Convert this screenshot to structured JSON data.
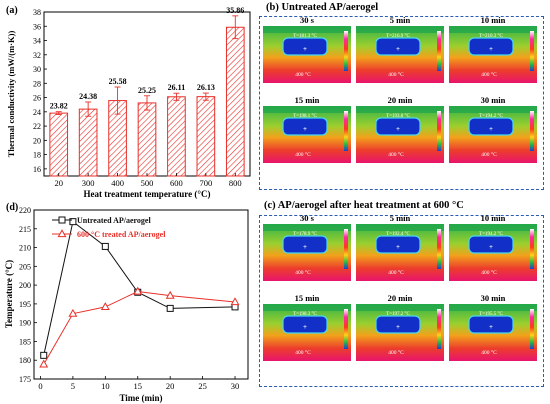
{
  "panels": {
    "a": {
      "label": "(a)",
      "chart_data": {
        "type": "bar",
        "categories": [
          "20",
          "300",
          "400",
          "500",
          "600",
          "700",
          "800"
        ],
        "values": [
          23.82,
          24.38,
          25.58,
          25.25,
          26.11,
          26.13,
          35.86
        ],
        "value_labels": [
          "23.82",
          "24.38",
          "25.58",
          "25.25",
          "26.11",
          "26.13",
          "35.86"
        ],
        "errors": [
          0.2,
          1.0,
          1.9,
          1.0,
          0.5,
          0.5,
          1.6
        ],
        "xlabel": "Heat treatment temperature (°C)",
        "ylabel": "Thermal conductivity (mW/(m·K))",
        "ylim": [
          15,
          38
        ],
        "yticks": [
          16,
          18,
          20,
          22,
          24,
          26,
          28,
          30,
          32,
          34,
          36,
          38
        ],
        "bar_color": "#e8302a"
      }
    },
    "b": {
      "label": "(b) Untreated AP/aerogel",
      "tiles": [
        {
          "time": "30 s",
          "readout": "T=181.3 °C",
          "plate": "400 °C"
        },
        {
          "time": "5 min",
          "readout": "T=216.9 °C",
          "plate": "400 °C"
        },
        {
          "time": "10 min",
          "readout": "T=210.3 °C",
          "plate": "400 °C"
        },
        {
          "time": "15 min",
          "readout": "T=198.1 °C",
          "plate": "400 °C"
        },
        {
          "time": "20 min",
          "readout": "T=193.8 °C",
          "plate": "400 °C"
        },
        {
          "time": "30 min",
          "readout": "T=194.2 °C",
          "plate": "400 °C"
        }
      ]
    },
    "c": {
      "label": "(c) AP/aerogel after heat treatment at 600 °C",
      "tiles": [
        {
          "time": "30 s",
          "readout": "T=178.9 °C",
          "plate": "400 °C"
        },
        {
          "time": "5 min",
          "readout": "T=192.4 °C",
          "plate": "400 °C"
        },
        {
          "time": "10 min",
          "readout": "T=194.2 °C",
          "plate": "400 °C"
        },
        {
          "time": "15 min",
          "readout": "T=198.3 °C",
          "plate": "400 °C"
        },
        {
          "time": "20 min",
          "readout": "T=197.2 °C",
          "plate": "400 °C"
        },
        {
          "time": "30 min",
          "readout": "T=195.5 °C",
          "plate": "400 °C"
        }
      ]
    },
    "d": {
      "label": "(d)",
      "chart_data": {
        "type": "line",
        "x": [
          0.5,
          5,
          10,
          15,
          20,
          30
        ],
        "series": [
          {
            "name": "Untreated AP/aerogel",
            "values": [
              181.3,
              216.9,
              210.3,
              198.1,
              193.8,
              194.2
            ],
            "color": "#111111",
            "marker": "square"
          },
          {
            "name": "600 °C treated AP/aerogel",
            "values": [
              178.9,
              192.4,
              194.2,
              198.3,
              197.2,
              195.5
            ],
            "color": "#e8302a",
            "marker": "triangle"
          }
        ],
        "xlabel": "Time (min)",
        "ylabel": "Temperature (°C)",
        "xlim": [
          -1,
          32
        ],
        "ylim": [
          175,
          220
        ],
        "xticks": [
          0,
          5,
          10,
          15,
          20,
          25,
          30
        ],
        "yticks": [
          175,
          180,
          185,
          190,
          195,
          200,
          205,
          210,
          215,
          220
        ],
        "legend": "top-right"
      }
    }
  }
}
